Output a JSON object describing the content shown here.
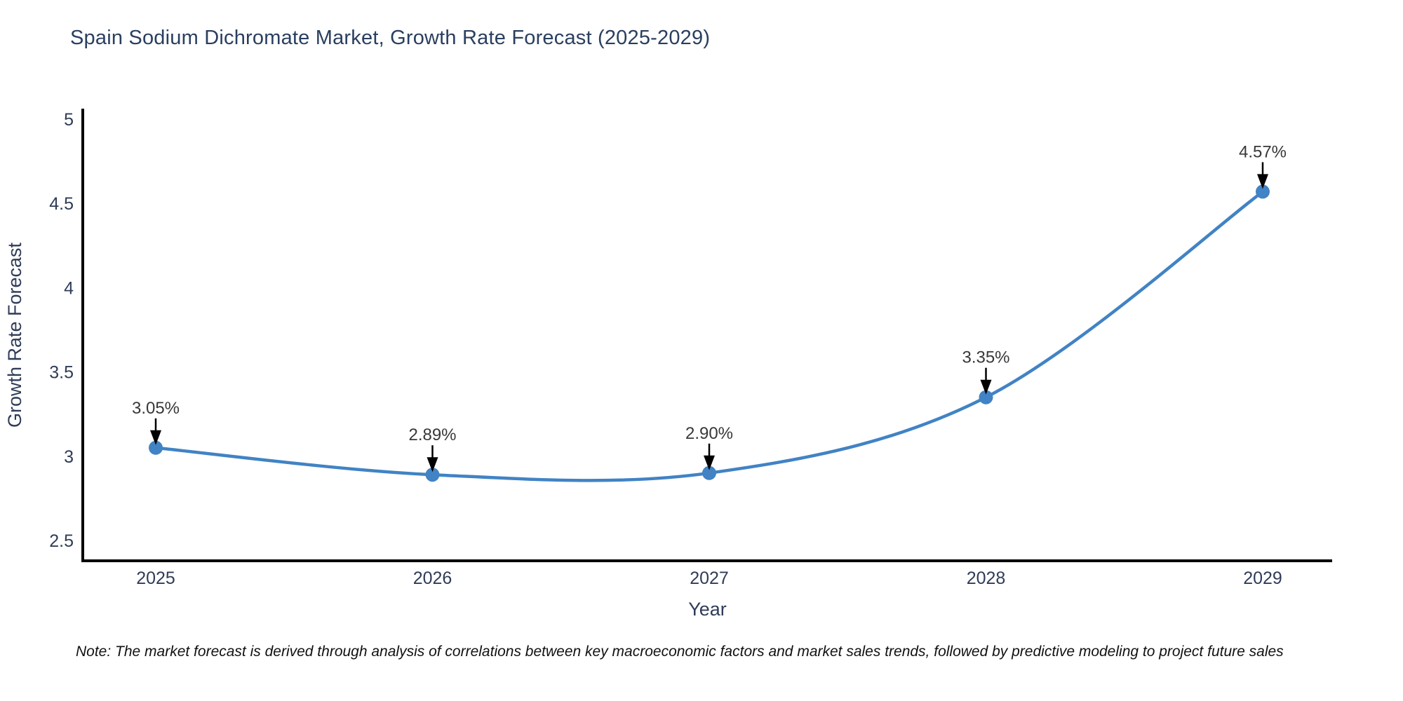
{
  "title": "Spain Sodium Dichromate Market, Growth Rate Forecast (2025-2029)",
  "note": "Note: The market forecast is derived through analysis of correlations between key macroeconomic factors and market sales trends, followed by predictive modeling to project future sales",
  "chart_data": {
    "type": "line",
    "title": "Spain Sodium Dichromate Market, Growth Rate Forecast (2025-2029)",
    "x": [
      "2025",
      "2026",
      "2027",
      "2028",
      "2029"
    ],
    "series": [
      {
        "name": "Growth Rate Forecast",
        "values": [
          3.05,
          2.89,
          2.9,
          3.35,
          4.57
        ]
      }
    ],
    "point_labels": [
      "3.05%",
      "2.89%",
      "2.90%",
      "3.35%",
      "4.57%"
    ],
    "xlabel": "Year",
    "ylabel": "Growth Rate Forecast",
    "y_ticks": [
      "2.5",
      "3",
      "3.5",
      "4",
      "4.5",
      "5"
    ],
    "ylim": [
      2.38,
      5.06
    ],
    "grid": false,
    "legend": "none",
    "line_shape": "spline",
    "colors": {
      "line": "#4183c4",
      "marker": "#4183c4",
      "axis": "#000000",
      "arrow": "#000000",
      "title_text": "#2a3f5f",
      "tick_text": "#2f3c58",
      "annotation_text": "#383838",
      "note_text": "#111111",
      "background": "#ffffff"
    }
  }
}
